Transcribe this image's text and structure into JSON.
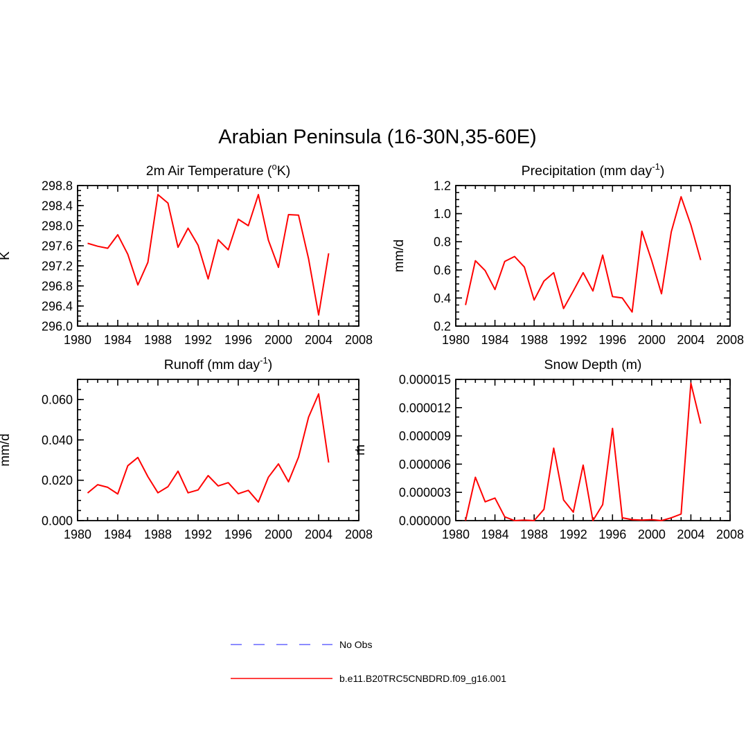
{
  "figure": {
    "title": "Arabian Peninsula (16-30N,35-60E)"
  },
  "legend": {
    "items": [
      {
        "label": "No Obs",
        "color": "#6666ff",
        "style": "dashed"
      },
      {
        "label": "b.e11.B20TRC5CNBDRD.f09_g16.001",
        "color": "#ff0000",
        "style": "solid"
      }
    ]
  },
  "chart_data": [
    {
      "type": "line",
      "title_main": "2m Air Temperature (",
      "title_sup": "o",
      "title_tail": "K)",
      "ylabel": "K",
      "xlim": [
        1980,
        2008
      ],
      "ylim": [
        296.0,
        298.8
      ],
      "xticks": [
        1980,
        1984,
        1988,
        1992,
        1996,
        2000,
        2004,
        2008
      ],
      "yticks": [
        296.0,
        296.4,
        296.8,
        297.2,
        297.6,
        298.0,
        298.4,
        298.8
      ],
      "ytick_labels": [
        "296.0",
        "296.4",
        "296.8",
        "297.2",
        "297.6",
        "298.0",
        "298.4",
        "298.8"
      ],
      "y_minor_step": 0.1,
      "series": [
        {
          "color": "#ff0000",
          "x": [
            1981,
            1982,
            1983,
            1984,
            1985,
            1986,
            1987,
            1988,
            1989,
            1990,
            1991,
            1992,
            1993,
            1994,
            1995,
            1996,
            1997,
            1998,
            1999,
            2000,
            2001,
            2002,
            2003,
            2004,
            2005
          ],
          "values": [
            297.65,
            297.59,
            297.55,
            297.82,
            297.43,
            296.82,
            297.27,
            298.62,
            298.45,
            297.57,
            297.95,
            297.61,
            296.94,
            297.72,
            297.52,
            298.13,
            298.0,
            298.62,
            297.71,
            297.17,
            298.22,
            298.21,
            297.34,
            296.22,
            297.45
          ]
        }
      ]
    },
    {
      "type": "line",
      "title_main": "Precipitation (mm day",
      "title_sup": "-1",
      "title_tail": ")",
      "ylabel": "mm/d",
      "xlim": [
        1980,
        2008
      ],
      "ylim": [
        0.2,
        1.2
      ],
      "xticks": [
        1980,
        1984,
        1988,
        1992,
        1996,
        2000,
        2004,
        2008
      ],
      "yticks": [
        0.2,
        0.4,
        0.6,
        0.8,
        1.0,
        1.2
      ],
      "ytick_labels": [
        "0.2",
        "0.4",
        "0.6",
        "0.8",
        "1.0",
        "1.2"
      ],
      "y_minor_step": 0.05,
      "series": [
        {
          "color": "#ff0000",
          "x": [
            1981,
            1982,
            1983,
            1984,
            1985,
            1986,
            1987,
            1988,
            1989,
            1990,
            1991,
            1992,
            1993,
            1994,
            1995,
            1996,
            1997,
            1998,
            1999,
            2000,
            2001,
            2002,
            2003,
            2004,
            2005
          ],
          "values": [
            0.35,
            0.665,
            0.595,
            0.46,
            0.66,
            0.695,
            0.62,
            0.385,
            0.52,
            0.58,
            0.325,
            0.45,
            0.58,
            0.45,
            0.705,
            0.41,
            0.4,
            0.3,
            0.875,
            0.665,
            0.43,
            0.87,
            1.12,
            0.92,
            0.67
          ]
        }
      ]
    },
    {
      "type": "line",
      "title_main": "Runoff (mm day",
      "title_sup": "-1",
      "title_tail": ")",
      "ylabel": "mm/d",
      "xlim": [
        1980,
        2008
      ],
      "ylim": [
        0.0,
        0.07
      ],
      "xticks": [
        1980,
        1984,
        1988,
        1992,
        1996,
        2000,
        2004,
        2008
      ],
      "yticks": [
        0.0,
        0.02,
        0.04,
        0.06
      ],
      "ytick_labels": [
        "0.000",
        "0.020",
        "0.040",
        "0.060"
      ],
      "y_minor_step": 0.005,
      "series": [
        {
          "color": "#ff0000",
          "x": [
            1981,
            1982,
            1983,
            1984,
            1985,
            1986,
            1987,
            1988,
            1989,
            1990,
            1991,
            1992,
            1993,
            1994,
            1995,
            1996,
            1997,
            1998,
            1999,
            2000,
            2001,
            2002,
            2003,
            2004,
            2005
          ],
          "values": [
            0.0137,
            0.0178,
            0.0165,
            0.0132,
            0.0272,
            0.0313,
            0.0218,
            0.0138,
            0.0168,
            0.0245,
            0.0138,
            0.0152,
            0.0223,
            0.0172,
            0.0188,
            0.0133,
            0.015,
            0.0092,
            0.0215,
            0.0281,
            0.0192,
            0.0315,
            0.0513,
            0.0628,
            0.0288
          ]
        }
      ]
    },
    {
      "type": "line",
      "title_main": "Snow Depth (m)",
      "title_sup": "",
      "title_tail": "",
      "ylabel": "m",
      "xlim": [
        1980,
        2008
      ],
      "ylim": [
        0.0,
        1.5e-05
      ],
      "xticks": [
        1980,
        1984,
        1988,
        1992,
        1996,
        2000,
        2004,
        2008
      ],
      "yticks": [
        0.0,
        3e-06,
        6e-06,
        9e-06,
        1.2e-05,
        1.5e-05
      ],
      "ytick_labels": [
        "0.000000",
        "0.000003",
        "0.000006",
        "0.000009",
        "0.000012",
        "0.000015"
      ],
      "y_minor_step": 1e-06,
      "series": [
        {
          "color": "#ff0000",
          "x": [
            1981,
            1982,
            1983,
            1984,
            1985,
            1986,
            1987,
            1988,
            1989,
            1990,
            1991,
            1992,
            1993,
            1994,
            1995,
            1996,
            1997,
            1998,
            1999,
            2000,
            2001,
            2002,
            2003,
            2004,
            2005
          ],
          "values": [
            0.0,
            4.6e-06,
            2e-06,
            2.4e-06,
            4e-07,
            0.0,
            5e-08,
            0.0,
            1.2e-06,
            7.7e-06,
            2.2e-06,
            9e-07,
            5.9e-06,
            0.0,
            1.7e-06,
            9.8e-06,
            3e-07,
            1e-07,
            5e-08,
            1e-07,
            0.0,
            3e-07,
            7e-07,
            1.46e-05,
            1.03e-05
          ]
        }
      ]
    }
  ]
}
